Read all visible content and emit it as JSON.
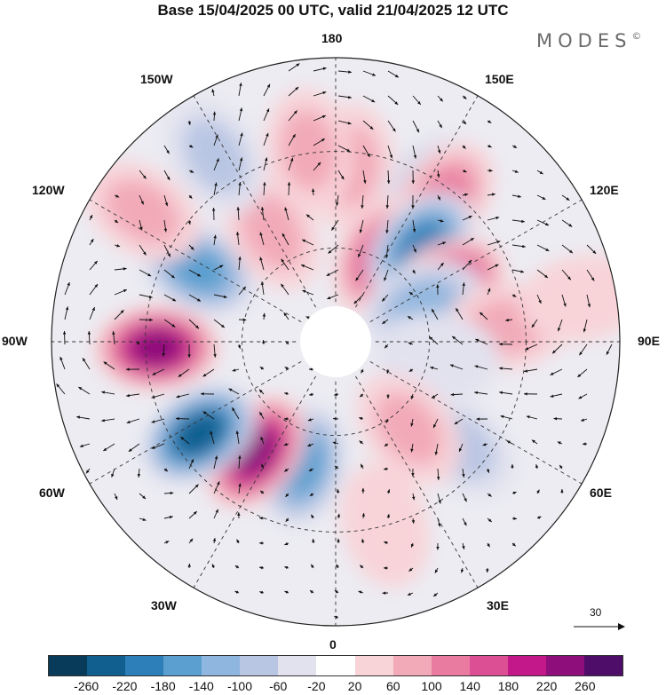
{
  "title": "Base 15/04/2025 00 UTC, valid 21/04/2025 12 UTC",
  "brand": {
    "name": "MODES",
    "mark": "©"
  },
  "longitude_labels": {
    "lon_180": "180",
    "lon_150E": "150E",
    "lon_120E": "120E",
    "lon_90E": "90E",
    "lon_60E": "60E",
    "lon_30E": "30E",
    "lon_0": "0",
    "lon_30W": "30W",
    "lon_60W": "60W",
    "lon_90W": "90W",
    "lon_120W": "120W",
    "lon_150W": "150W"
  },
  "wind_scale": {
    "value": "30"
  },
  "colorbar": {
    "colors": [
      "#083a5a",
      "#105f8f",
      "#2c7fb8",
      "#5a9fcf",
      "#8fb6de",
      "#b9c6e3",
      "#e2e2ef",
      "#ffffff",
      "#f8d4d9",
      "#f2aab8",
      "#e97ba0",
      "#dc4f95",
      "#c2188a",
      "#8e0f7c",
      "#4d0d69"
    ],
    "ticks": [
      "-260",
      "-220",
      "-180",
      "-140",
      "-100",
      "-60",
      "-20",
      "20",
      "60",
      "100",
      "140",
      "180",
      "220",
      "260"
    ]
  },
  "anomalies": [
    {
      "lon": 175,
      "colat": 62,
      "value": 70
    },
    {
      "lon": 148,
      "colat": 62,
      "value": -100
    },
    {
      "lon": 152,
      "colat": 34,
      "value": 140
    },
    {
      "lon": 143,
      "colat": 63,
      "value": 120
    },
    {
      "lon": 138,
      "colat": 45,
      "value": -200
    },
    {
      "lon": 117,
      "colat": 44,
      "value": 200
    },
    {
      "lon": 112,
      "colat": 33,
      "value": -120
    },
    {
      "lon": 95,
      "colat": 60,
      "value": 70
    },
    {
      "lon": 82,
      "colat": 36,
      "value": -30
    },
    {
      "lon": 50,
      "colat": 57,
      "value": -90
    },
    {
      "lon": 40,
      "colat": 40,
      "value": 80
    },
    {
      "lon": 15,
      "colat": 67,
      "value": 40
    },
    {
      "lon": -15,
      "colat": 45,
      "value": -140
    },
    {
      "lon": -36,
      "colat": 48,
      "value": 220
    },
    {
      "lon": -56,
      "colat": 58,
      "value": -230
    },
    {
      "lon": -88,
      "colat": 63,
      "value": 230
    },
    {
      "lon": -118,
      "colat": 55,
      "value": -150
    },
    {
      "lon": -124,
      "colat": 82,
      "value": 80
    },
    {
      "lon": -150,
      "colat": 45,
      "value": 90
    },
    {
      "lon": -147,
      "colat": 78,
      "value": -90
    },
    {
      "lon": -172,
      "colat": 68,
      "value": 90
    },
    {
      "lon": 100,
      "colat": 88,
      "value": 40
    }
  ]
}
